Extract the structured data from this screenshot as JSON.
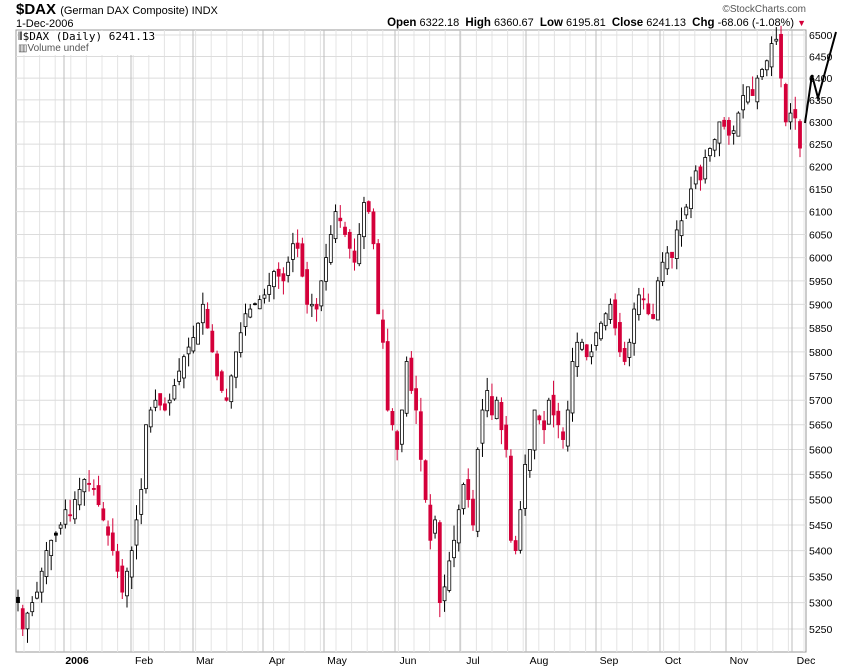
{
  "header": {
    "symbol": "$DAX",
    "name": "(German DAX Composite) INDX",
    "date": "1-Dec-2006",
    "copyright": "©StockCharts.com",
    "open_label": "Open",
    "open": "6322.18",
    "high_label": "High",
    "high": "6360.67",
    "low_label": "Low",
    "low": "6195.81",
    "close_label": "Close",
    "close": "6241.13",
    "chg_label": "Chg",
    "chg": "-68.06 (-1.08%)",
    "down_color": "#d4003a"
  },
  "legend": {
    "series": "$DAX (Daily) 6241.13",
    "volume": "Volume undef"
  },
  "chart_data": {
    "type": "candlestick",
    "title": "$DAX (German DAX Composite) INDX",
    "scale": "log",
    "ylim": [
      5200,
      6500
    ],
    "yticks": [
      6500,
      6450,
      6400,
      6350,
      6300,
      6250,
      6200,
      6150,
      6100,
      6050,
      6000,
      5950,
      5900,
      5850,
      5800,
      5750,
      5700,
      5650,
      5600,
      5550,
      5500,
      5450,
      5400,
      5350,
      5300,
      5250
    ],
    "xticks": [
      "2006",
      "Feb",
      "Mar",
      "Apr",
      "May",
      "Jun",
      "Jul",
      "Aug",
      "Sep",
      "Oct",
      "Nov",
      "Dec"
    ],
    "grid": true,
    "up_color": "#000000",
    "down_color": "#d4003a",
    "closes": [
      5300,
      5250,
      5280,
      5300,
      5320,
      5360,
      5400,
      5420,
      5430,
      5450,
      5480,
      5470,
      5500,
      5520,
      5540,
      5530,
      5520,
      5490,
      5460,
      5430,
      5400,
      5360,
      5320,
      5360,
      5400,
      5460,
      5520,
      5650,
      5680,
      5700,
      5690,
      5680,
      5700,
      5730,
      5760,
      5790,
      5810,
      5830,
      5860,
      5900,
      5850,
      5800,
      5750,
      5720,
      5700,
      5750,
      5800,
      5840,
      5880,
      5890,
      5900,
      5910,
      5920,
      5940,
      5970,
      5960,
      5950,
      5990,
      6030,
      6020,
      5960,
      5900,
      5900,
      5890,
      5950,
      6000,
      6050,
      6100,
      6080,
      6050,
      6020,
      5990,
      6050,
      6120,
      6100,
      6030,
      5880,
      5820,
      5680,
      5650,
      5600,
      5680,
      5780,
      5720,
      5680,
      5580,
      5500,
      5420,
      5460,
      5300,
      5330,
      5380,
      5420,
      5480,
      5530,
      5500,
      5450,
      5600,
      5680,
      5720,
      5670,
      5700,
      5640,
      5600,
      5420,
      5400,
      5480,
      5570,
      5600,
      5680,
      5660,
      5640,
      5700,
      5670,
      5650,
      5620,
      5680,
      5780,
      5820,
      5820,
      5790,
      5800,
      5840,
      5860,
      5880,
      5900,
      5850,
      5800,
      5780,
      5820,
      5890,
      5920,
      5910,
      5880,
      5870,
      5950,
      5990,
      6010,
      6000,
      6060,
      6080,
      6110,
      6150,
      6190,
      6170,
      6220,
      6240,
      6260,
      6300,
      6290,
      6270,
      6280,
      6320,
      6360,
      6380,
      6360,
      6400,
      6420,
      6440,
      6480,
      6490,
      6400,
      6300,
      6320,
      6309,
      6241
    ]
  }
}
